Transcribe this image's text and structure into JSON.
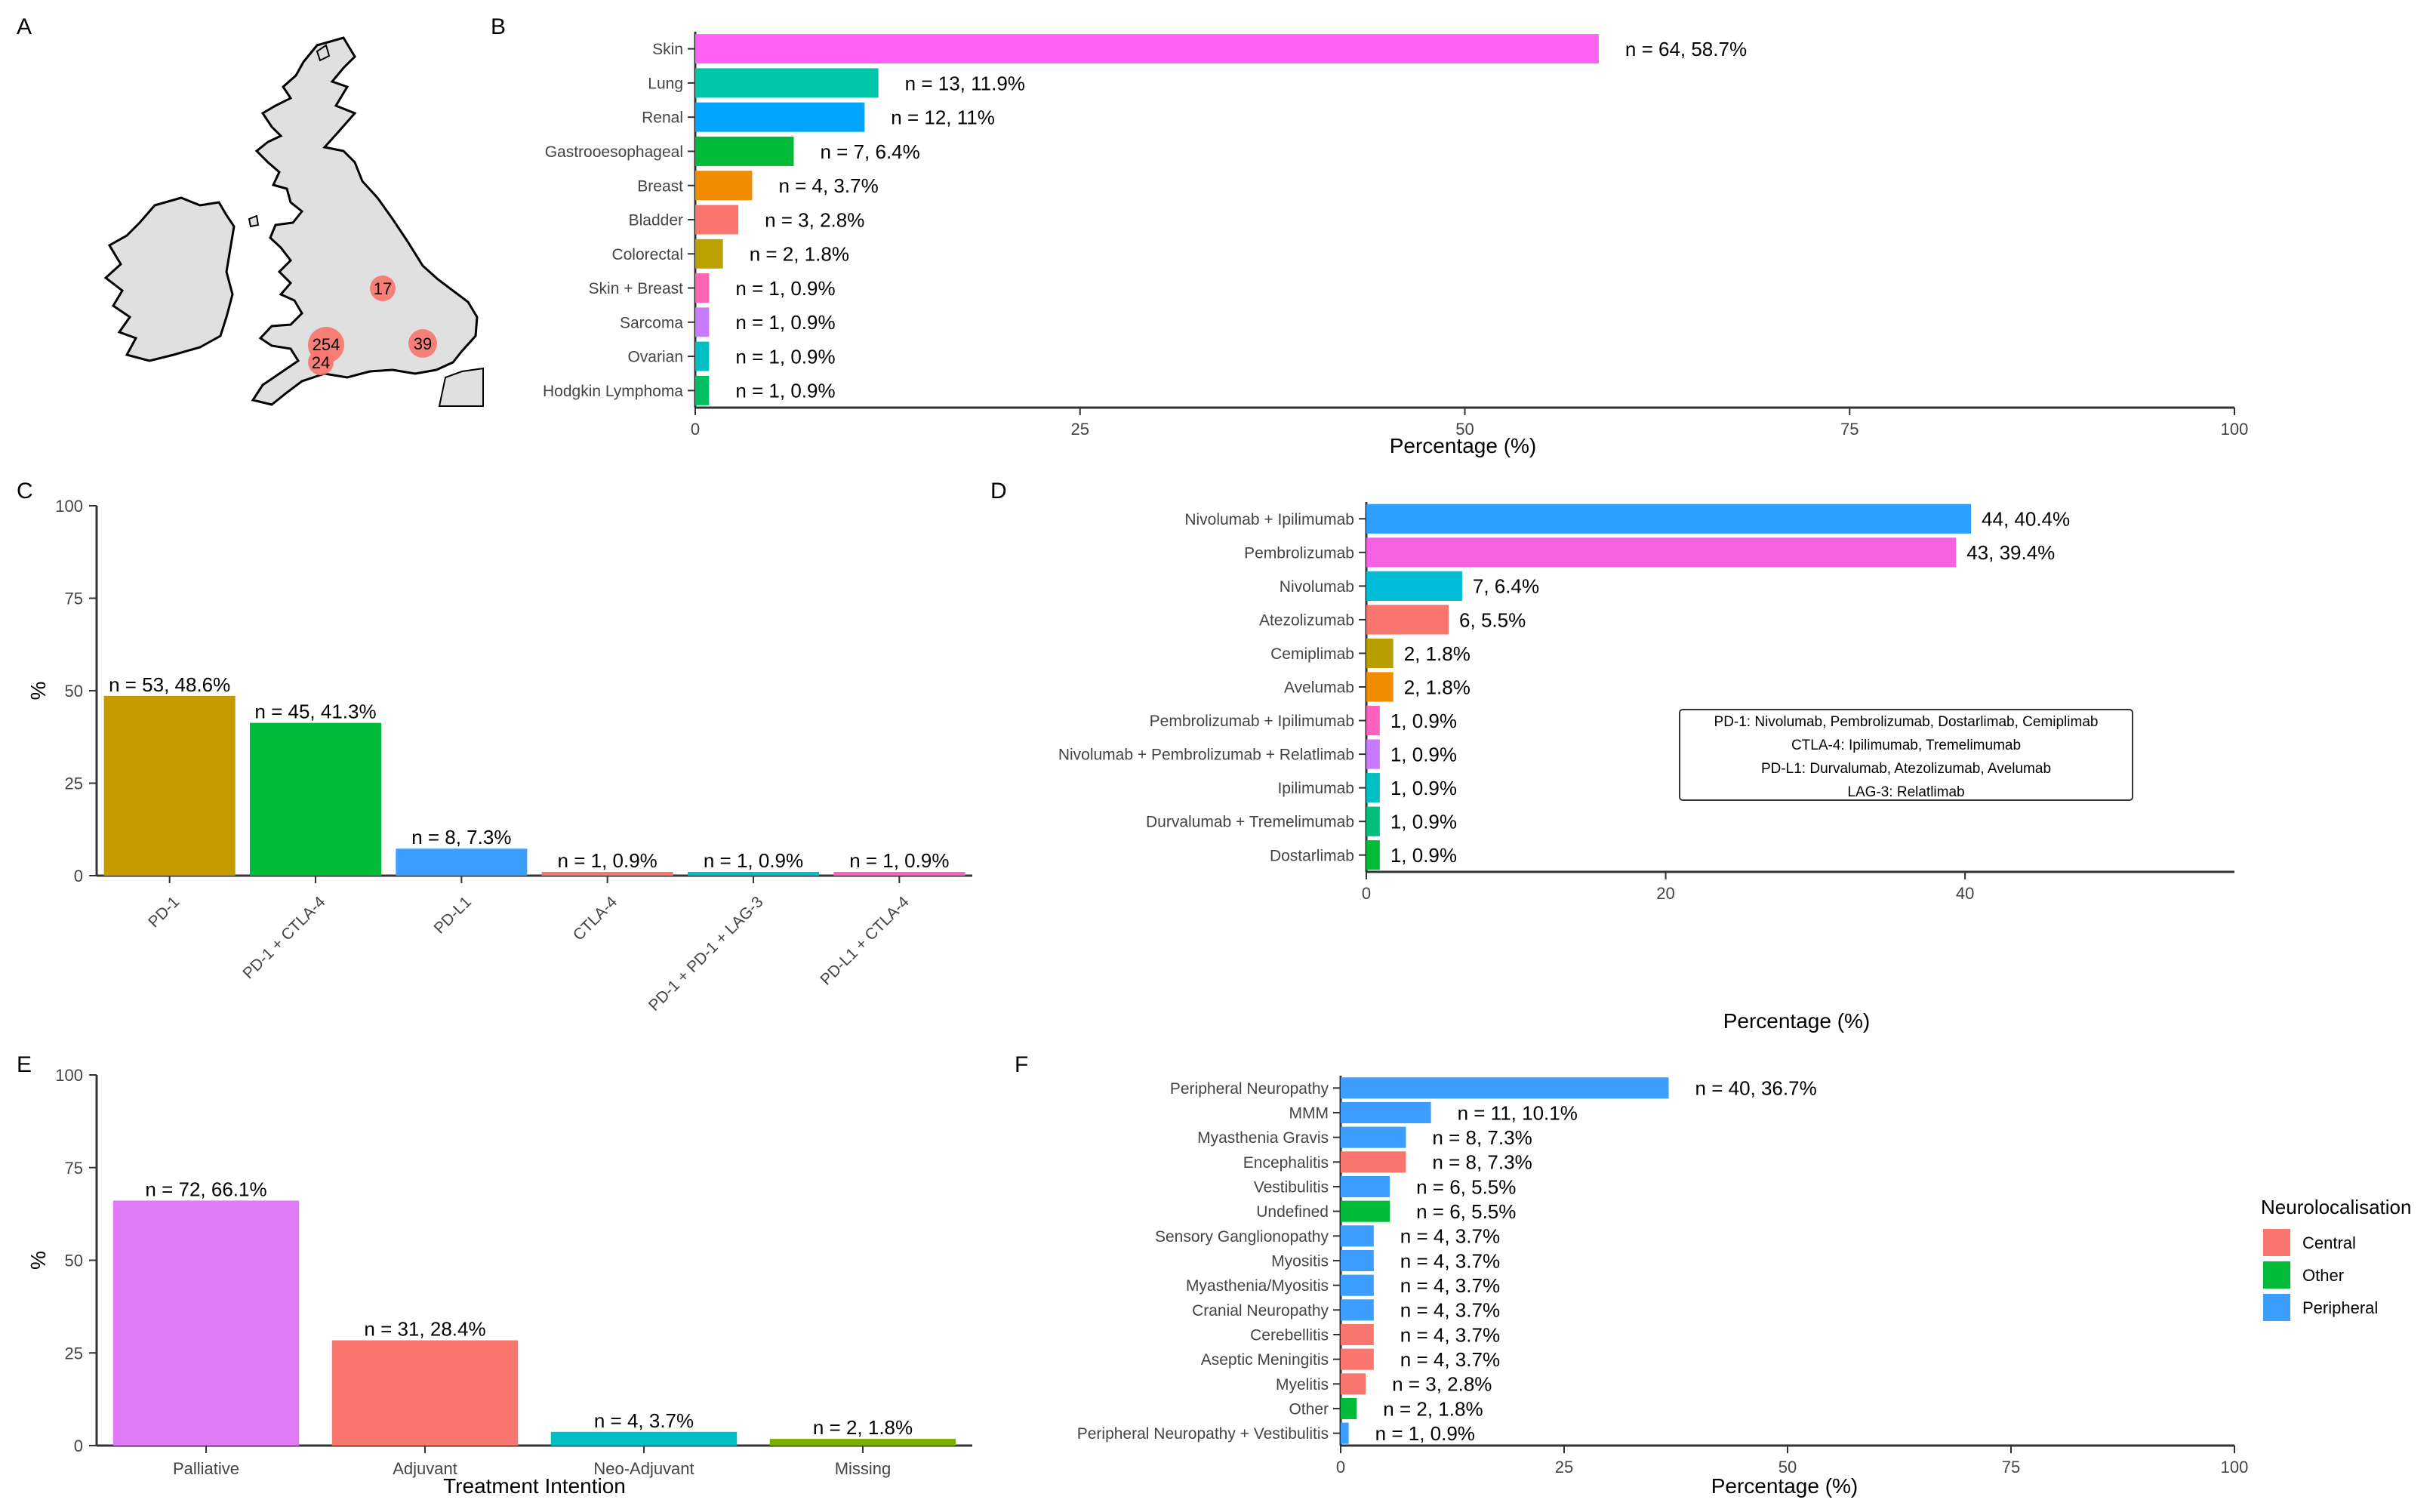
{
  "panels": {
    "a": {
      "label": "A",
      "hospitals": [
        {
          "value": "17"
        },
        {
          "value": "254"
        },
        {
          "value": "24"
        },
        {
          "value": "39"
        }
      ]
    },
    "b": {
      "label": "B",
      "xlabel": "Percentage (%)",
      "ticks": [
        0,
        25,
        50,
        75,
        100
      ],
      "type": "hbar",
      "categories": [
        "Skin",
        "Lung",
        "Renal",
        "Gastrooesophageal",
        "Breast",
        "Bladder",
        "Colorectal",
        "Skin + Breast",
        "Sarcoma",
        "Ovarian",
        "Hodgkin Lymphoma"
      ],
      "values": [
        58.7,
        11.9,
        11,
        6.4,
        3.7,
        2.8,
        1.8,
        0.9,
        0.9,
        0.9,
        0.9
      ],
      "labels": [
        "n = 64, 58.7%",
        "n = 13, 11.9%",
        "n = 12, 11%",
        "n = 7, 6.4%",
        "n = 4, 3.7%",
        "n = 3, 2.8%",
        "n = 2, 1.8%",
        "n = 1, 0.9%",
        "n = 1, 0.9%",
        "n = 1, 0.9%",
        "n = 1, 0.9%"
      ],
      "colors": [
        "#FF61F6",
        "#00C5A8",
        "#00A5FF",
        "#00BA38",
        "#F08C00",
        "#F8766D",
        "#BAA000",
        "#FF64B0",
        "#C77CFF",
        "#00BFC4",
        "#00BF63"
      ],
      "xlim": [
        0,
        100
      ]
    },
    "c": {
      "label": "C",
      "ylabel": "%",
      "ticks": [
        0,
        25,
        50,
        75,
        100
      ],
      "type": "bar",
      "categories": [
        "PD-1",
        "PD-1 + CTLA-4",
        "PD-L1",
        "CTLA-4",
        "PD-1 + PD-1 + LAG-3",
        "PD-L1 + CTLA-4"
      ],
      "values": [
        48.6,
        41.3,
        7.3,
        0.9,
        0.9,
        0.9
      ],
      "labels": [
        "n = 53, 48.6%",
        "n = 45, 41.3%",
        "n = 8, 7.3%",
        "n = 1, 0.9%",
        "n = 1, 0.9%",
        "n = 1, 0.9%"
      ],
      "colors": [
        "#C49A00",
        "#00BA38",
        "#3C9EFF",
        "#F8766D",
        "#00BFC4",
        "#FF61C3"
      ],
      "ylim": [
        0,
        100
      ]
    },
    "d": {
      "label": "D",
      "xlabel": "Percentage (%)",
      "ticks": [
        0,
        20,
        40
      ],
      "type": "hbar",
      "categories": [
        "Nivolumab + Ipilimumab",
        "Pembrolizumab",
        "Nivolumab",
        "Atezolizumab",
        "Cemiplimab",
        "Avelumab",
        "Pembrolizumab + Ipilimumab",
        "Nivolumab + Pembrolizumab + Relatlimab",
        "Ipilimumab",
        "Durvalumab + Tremelimumab",
        "Dostarlimab"
      ],
      "values": [
        40.4,
        39.4,
        6.4,
        5.5,
        1.8,
        1.8,
        0.9,
        0.9,
        0.9,
        0.9,
        0.9
      ],
      "labels": [
        "44, 40.4%",
        "43, 39.4%",
        "7, 6.4%",
        "6, 5.5%",
        "2, 1.8%",
        "2, 1.8%",
        "1, 0.9%",
        "1, 0.9%",
        "1, 0.9%",
        "1, 0.9%",
        "1, 0.9%"
      ],
      "colors": [
        "#2E9FFF",
        "#F563E3",
        "#00BCD8",
        "#F8766D",
        "#B79F00",
        "#F08C00",
        "#FF62BC",
        "#C77CFF",
        "#00BFC4",
        "#00BF7D",
        "#00BA38"
      ],
      "xlim": [
        0,
        58
      ],
      "legend": [
        "PD-1: Nivolumab, Pembrolizumab, Dostarlimab, Cemiplimab",
        "CTLA-4: Ipilimumab, Tremelimumab",
        "PD-L1: Durvalumab, Atezolizumab, Avelumab",
        "LAG-3: Relatlimab"
      ]
    },
    "e": {
      "label": "E",
      "ylabel": "%",
      "xlabel": "Treatment Intention",
      "ticks": [
        0,
        25,
        50,
        75,
        100
      ],
      "type": "bar",
      "categories": [
        "Palliative",
        "Adjuvant",
        "Neo-Adjuvant",
        "Missing"
      ],
      "values": [
        66.1,
        28.4,
        3.7,
        1.8
      ],
      "labels": [
        "n = 72, 66.1%",
        "n = 31, 28.4%",
        "n = 4, 3.7%",
        "n = 2, 1.8%"
      ],
      "colors": [
        "#E07BF5",
        "#F8766D",
        "#00BFC4",
        "#7CAE00"
      ],
      "ylim": [
        0,
        100
      ]
    },
    "f": {
      "label": "F",
      "xlabel": "Percentage (%)",
      "ticks": [
        0,
        25,
        50,
        75,
        100
      ],
      "type": "hbar",
      "categories": [
        "Peripheral Neuropathy",
        "MMM",
        "Myasthenia Gravis",
        "Encephalitis",
        "Vestibulitis",
        "Undefined",
        "Sensory Ganglionopathy",
        "Myositis",
        "Myasthenia/Myositis",
        "Cranial Neuropathy",
        "Cerebellitis",
        "Aseptic Meningitis",
        "Myelitis",
        "Other",
        "Peripheral Neuropathy + Vestibulitis"
      ],
      "values": [
        36.7,
        10.1,
        7.3,
        7.3,
        5.5,
        5.5,
        3.7,
        3.7,
        3.7,
        3.7,
        3.7,
        3.7,
        2.8,
        1.8,
        0.9
      ],
      "labels": [
        "n = 40, 36.7%",
        "n = 11, 10.1%",
        "n = 8, 7.3%",
        "n = 8, 7.3%",
        "n = 6, 5.5%",
        "n = 6, 5.5%",
        "n = 4, 3.7%",
        "n = 4, 3.7%",
        "n = 4, 3.7%",
        "n = 4, 3.7%",
        "n = 4, 3.7%",
        "n = 4, 3.7%",
        "n = 3, 2.8%",
        "n = 2, 1.8%",
        "n = 1, 0.9%"
      ],
      "groups": [
        "Peripheral",
        "Peripheral",
        "Peripheral",
        "Central",
        "Peripheral",
        "Other",
        "Peripheral",
        "Peripheral",
        "Peripheral",
        "Peripheral",
        "Central",
        "Central",
        "Central",
        "Other",
        "Peripheral"
      ],
      "group_colors": {
        "Central": "#F8766D",
        "Other": "#00BA38",
        "Peripheral": "#3C9EFF"
      },
      "xlim": [
        0,
        100
      ],
      "legend_title": "Neurolocalisation",
      "legend": [
        "Central",
        "Other",
        "Peripheral"
      ]
    }
  },
  "chart_data": [
    {
      "type": "bar",
      "orientation": "horizontal",
      "title": "B",
      "xlabel": "Percentage (%)",
      "categories": [
        "Skin",
        "Lung",
        "Renal",
        "Gastrooesophageal",
        "Breast",
        "Bladder",
        "Colorectal",
        "Skin + Breast",
        "Sarcoma",
        "Ovarian",
        "Hodgkin Lymphoma"
      ],
      "values": [
        58.7,
        11.9,
        11,
        6.4,
        3.7,
        2.8,
        1.8,
        0.9,
        0.9,
        0.9,
        0.9
      ],
      "xlim": [
        0,
        100
      ]
    },
    {
      "type": "bar",
      "title": "C",
      "ylabel": "%",
      "categories": [
        "PD-1",
        "PD-1 + CTLA-4",
        "PD-L1",
        "CTLA-4",
        "PD-1 + PD-1 + LAG-3",
        "PD-L1 + CTLA-4"
      ],
      "values": [
        48.6,
        41.3,
        7.3,
        0.9,
        0.9,
        0.9
      ],
      "ylim": [
        0,
        100
      ]
    },
    {
      "type": "bar",
      "orientation": "horizontal",
      "title": "D",
      "xlabel": "Percentage (%)",
      "categories": [
        "Nivolumab + Ipilimumab",
        "Pembrolizumab",
        "Nivolumab",
        "Atezolizumab",
        "Cemiplimab",
        "Avelumab",
        "Pembrolizumab + Ipilimumab",
        "Nivolumab + Pembrolizumab + Relatlimab",
        "Ipilimumab",
        "Durvalumab + Tremelimumab",
        "Dostarlimab"
      ],
      "values": [
        40.4,
        39.4,
        6.4,
        5.5,
        1.8,
        1.8,
        0.9,
        0.9,
        0.9,
        0.9,
        0.9
      ]
    },
    {
      "type": "bar",
      "title": "E",
      "ylabel": "%",
      "xlabel": "Treatment Intention",
      "categories": [
        "Palliative",
        "Adjuvant",
        "Neo-Adjuvant",
        "Missing"
      ],
      "values": [
        66.1,
        28.4,
        3.7,
        1.8
      ],
      "ylim": [
        0,
        100
      ]
    },
    {
      "type": "bar",
      "orientation": "horizontal",
      "title": "F",
      "xlabel": "Percentage (%)",
      "categories": [
        "Peripheral Neuropathy",
        "MMM",
        "Myasthenia Gravis",
        "Encephalitis",
        "Vestibulitis",
        "Undefined",
        "Sensory Ganglionopathy",
        "Myositis",
        "Myasthenia/Myositis",
        "Cranial Neuropathy",
        "Cerebellitis",
        "Aseptic Meningitis",
        "Myelitis",
        "Other",
        "Peripheral Neuropathy + Vestibulitis"
      ],
      "values": [
        36.7,
        10.1,
        7.3,
        7.3,
        5.5,
        5.5,
        3.7,
        3.7,
        3.7,
        3.7,
        3.7,
        3.7,
        2.8,
        1.8,
        0.9
      ],
      "series_group": [
        "Peripheral",
        "Peripheral",
        "Peripheral",
        "Central",
        "Peripheral",
        "Other",
        "Peripheral",
        "Peripheral",
        "Peripheral",
        "Peripheral",
        "Central",
        "Central",
        "Central",
        "Other",
        "Peripheral"
      ],
      "xlim": [
        0,
        100
      ]
    }
  ]
}
